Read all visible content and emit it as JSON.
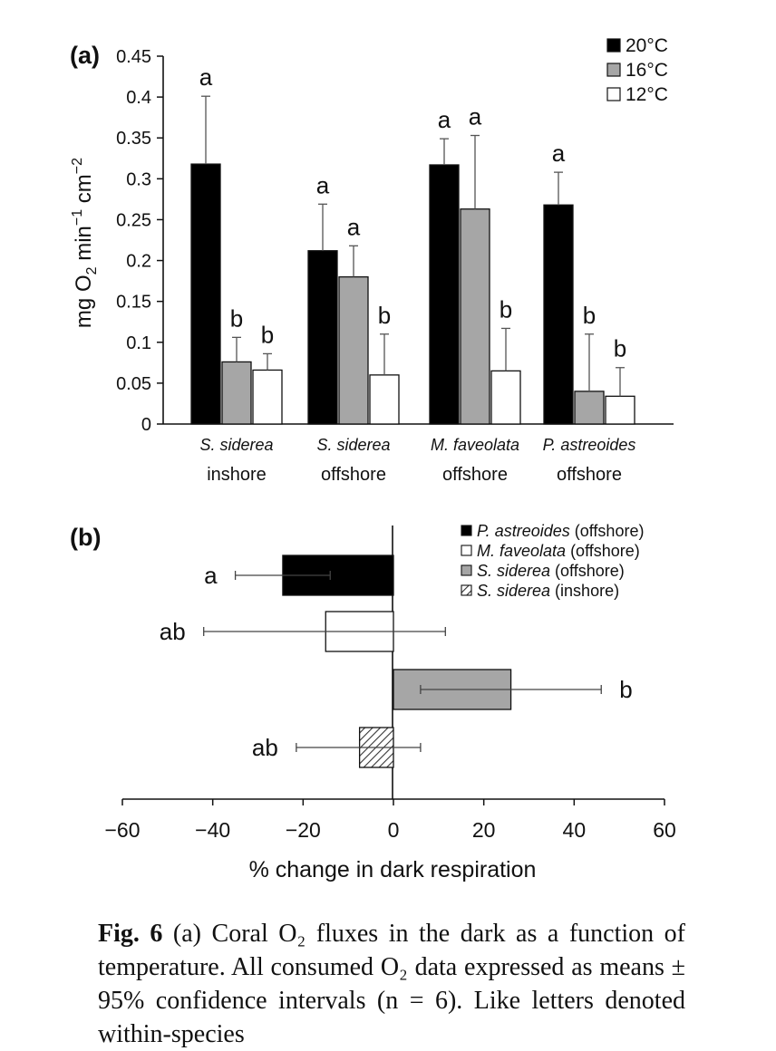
{
  "chart_data": [
    {
      "type": "bar",
      "panel_label": "(a)",
      "ylabel_parts": [
        "mg O",
        "2",
        " min",
        "−1",
        " cm",
        "−2"
      ],
      "ylim": [
        0,
        0.45
      ],
      "yticks": [
        0,
        0.05,
        0.1,
        0.15,
        0.2,
        0.25,
        0.3,
        0.35,
        0.4,
        0.45
      ],
      "ytick_labels": [
        "0",
        "0.05",
        "0.1",
        "0.15",
        "0.2",
        "0.25",
        "0.3",
        "0.35",
        "0.4",
        "0.45"
      ],
      "grid": false,
      "legend_position": "top-right",
      "categories": [
        {
          "species": "S. siderea",
          "site": "inshore"
        },
        {
          "species": "S. siderea",
          "site": "offshore"
        },
        {
          "species": "M. faveolata",
          "site": "offshore"
        },
        {
          "species": "P. astreoides",
          "site": "offshore"
        }
      ],
      "series": [
        {
          "name": "20°C",
          "color": "#000000",
          "values": [
            0.318,
            0.212,
            0.317,
            0.268
          ],
          "ci": [
            0.083,
            0.057,
            0.032,
            0.04
          ],
          "letters": [
            "a",
            "a",
            "a",
            "a"
          ]
        },
        {
          "name": "16°C",
          "color": "#a6a6a6",
          "values": [
            0.076,
            0.18,
            0.263,
            0.04
          ],
          "ci": [
            0.03,
            0.038,
            0.09,
            0.07
          ],
          "letters": [
            "b",
            "a",
            "a",
            "b"
          ]
        },
        {
          "name": "12°C",
          "color": "#ffffff",
          "values": [
            0.066,
            0.06,
            0.065,
            0.034
          ],
          "ci": [
            0.02,
            0.05,
            0.052,
            0.035
          ],
          "letters": [
            "b",
            "b",
            "b",
            "b"
          ]
        }
      ]
    },
    {
      "type": "bar",
      "orientation": "horizontal",
      "panel_label": "(b)",
      "xlabel": "% change in dark respiration",
      "xlim": [
        -60,
        60
      ],
      "xticks": [
        -60,
        -40,
        -20,
        0,
        20,
        40,
        60
      ],
      "xtick_labels": [
        "−60",
        "−40",
        "−20",
        "0",
        "20",
        "40",
        "60"
      ],
      "grid": false,
      "legend_position": "top-right",
      "series": [
        {
          "species": "P. astreoides",
          "site": "(offshore)",
          "value": -24.5,
          "err_low": -35,
          "err_high": -14,
          "letter": "a",
          "fill": "solid-black"
        },
        {
          "species": "M. faveolata",
          "site": "(offshore)",
          "value": -15,
          "err_low": -42,
          "err_high": 11.5,
          "letter": "ab",
          "fill": "white"
        },
        {
          "species": "S. siderea",
          "site": "(offshore)",
          "value": 26,
          "err_low": 6,
          "err_high": 46,
          "letter": "b",
          "fill": "solid-gray"
        },
        {
          "species": "S. siderea",
          "site": "(inshore)",
          "value": -7.5,
          "err_low": -21.5,
          "err_high": 6,
          "letter": "ab",
          "fill": "hatched"
        }
      ]
    }
  ],
  "caption": {
    "fig_label": "Fig. 6",
    "text": " (a) Coral O₂ fluxes in the dark as a function of temperature. All consumed O₂ data expressed as means ± 95% confidence intervals (n = 6). Like letters denoted within-species"
  }
}
